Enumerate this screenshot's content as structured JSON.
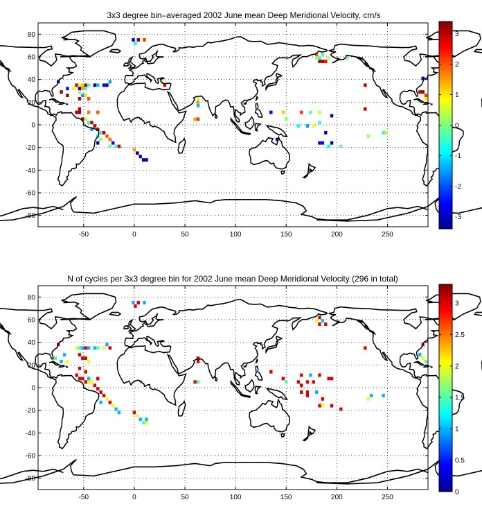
{
  "chart_data": [
    {
      "type": "heatmap",
      "title": "3x3 degree bin–averaged 2002 June mean Deep Meridional Velocity, cm/s",
      "xlim": [
        -95,
        290
      ],
      "ylim": [
        -90,
        90
      ],
      "xticks": [
        -50,
        0,
        50,
        100,
        150,
        200,
        250
      ],
      "yticks": [
        -80,
        -60,
        -40,
        -20,
        0,
        20,
        40,
        60,
        80
      ],
      "grid": true,
      "colorbar": {
        "clim": [
          -3.4,
          3.4
        ],
        "ticks": [
          -3,
          -2,
          -1,
          0,
          1,
          2,
          3
        ],
        "colormap": "jet"
      },
      "bin_size_deg": 3,
      "cells": [
        [
          4,
          75,
          3.2
        ],
        [
          10,
          75,
          2.2
        ],
        [
          1,
          72,
          -0.8
        ],
        [
          -1,
          75,
          -2.8
        ],
        [
          -75,
          38,
          -2.5
        ],
        [
          -72,
          29,
          3.2
        ],
        [
          -66,
          26,
          3.2
        ],
        [
          -66,
          32,
          -2.5
        ],
        [
          -57,
          35,
          2.8
        ],
        [
          -54,
          35,
          0.5
        ],
        [
          -51,
          35,
          1.2
        ],
        [
          -48,
          35,
          3.0
        ],
        [
          -45,
          35,
          -0.5
        ],
        [
          -39,
          35,
          -3.0
        ],
        [
          -36,
          35,
          -1.3
        ],
        [
          -30,
          35,
          -2.7
        ],
        [
          -27,
          35,
          -3.0
        ],
        [
          -24,
          38,
          -1.5
        ],
        [
          -60,
          32,
          0.8
        ],
        [
          -54,
          32,
          -3.0
        ],
        [
          -51,
          32,
          1.5
        ],
        [
          -48,
          32,
          -0.5
        ],
        [
          -54,
          29,
          0.2
        ],
        [
          -51,
          26,
          -1.5
        ],
        [
          -48,
          26,
          1.0
        ],
        [
          -54,
          23,
          3.0
        ],
        [
          -45,
          23,
          2.0
        ],
        [
          -54,
          14,
          3.0
        ],
        [
          -57,
          11,
          3.2
        ],
        [
          -54,
          11,
          3.2
        ],
        [
          -45,
          11,
          1.8
        ],
        [
          -36,
          11,
          2.0
        ],
        [
          -51,
          5,
          3.2
        ],
        [
          -48,
          5,
          0.5
        ],
        [
          -45,
          2,
          -0.5
        ],
        [
          -42,
          2,
          3.0
        ],
        [
          -39,
          -1,
          3.0
        ],
        [
          -36,
          -4,
          3.0
        ],
        [
          -42,
          -4,
          -1.5
        ],
        [
          -33,
          -7,
          -0.5
        ],
        [
          -30,
          -7,
          3.0
        ],
        [
          -36,
          -10,
          -0.8
        ],
        [
          -33,
          -13,
          0.3
        ],
        [
          -27,
          -10,
          2.0
        ],
        [
          -24,
          -13,
          1.8
        ],
        [
          -36,
          -16,
          -3.0
        ],
        [
          -21,
          -16,
          -2.5
        ],
        [
          -18,
          -19,
          -0.5
        ],
        [
          -15,
          -19,
          3.0
        ],
        [
          -24,
          -19,
          -0.2
        ],
        [
          0,
          -22,
          1.5
        ],
        [
          3,
          -25,
          -3.3
        ],
        [
          6,
          -28,
          -3.0
        ],
        [
          9,
          -31,
          -3.2
        ],
        [
          12,
          -31,
          -3.3
        ],
        [
          27,
          38,
          0.2
        ],
        [
          30,
          35,
          2.8
        ],
        [
          63,
          23,
          0.5
        ],
        [
          63,
          20,
          1.5
        ],
        [
          63,
          17,
          -1.3
        ],
        [
          60,
          5,
          1.5
        ],
        [
          63,
          5,
          2.2
        ],
        [
          135,
          11,
          -2.5
        ],
        [
          147,
          11,
          1.2
        ],
        [
          165,
          11,
          2.2
        ],
        [
          174,
          11,
          -0.3
        ],
        [
          183,
          11,
          0.5
        ],
        [
          195,
          8,
          -3.0
        ],
        [
          150,
          5,
          0.0
        ],
        [
          162,
          -1,
          -0.8
        ],
        [
          171,
          -1,
          -1.5
        ],
        [
          177,
          -1,
          0.8
        ],
        [
          183,
          2,
          -0.5
        ],
        [
          189,
          -7,
          -3.0
        ],
        [
          141,
          -13,
          -3.0
        ],
        [
          183,
          -16,
          -3.0
        ],
        [
          186,
          -16,
          -2.5
        ],
        [
          192,
          -19,
          -0.8
        ],
        [
          195,
          -16,
          -3.2
        ],
        [
          204,
          -19,
          -0.2
        ],
        [
          180,
          59,
          0.2
        ],
        [
          183,
          56,
          3.2
        ],
        [
          186,
          56,
          3.0
        ],
        [
          189,
          56,
          2.5
        ],
        [
          192,
          59,
          0.5
        ],
        [
          183,
          59,
          -0.5
        ],
        [
          186,
          62,
          -0.3
        ],
        [
          180,
          62,
          2.0
        ],
        [
          210,
          59,
          0.0
        ],
        [
          228,
          35,
          3.0
        ],
        [
          228,
          14,
          3.0
        ],
        [
          231,
          -10,
          0.2
        ],
        [
          246,
          -7,
          -0.5
        ],
        [
          249,
          -7,
          0.5
        ],
        [
          285,
          41,
          -3.0
        ],
        [
          285,
          29,
          3.2
        ],
        [
          282,
          29,
          3.0
        ],
        [
          288,
          26,
          2.2
        ],
        [
          288,
          23,
          1.0
        ]
      ]
    },
    {
      "type": "heatmap",
      "title": "N of cycles per 3x3 degree bin for 2002 June mean Deep Meridional Velocity (296 in total)",
      "xlim": [
        -95,
        290
      ],
      "ylim": [
        -90,
        90
      ],
      "xticks": [
        -50,
        0,
        50,
        100,
        150,
        200,
        250
      ],
      "yticks": [
        -80,
        -60,
        -40,
        -20,
        0,
        20,
        40,
        60,
        80
      ],
      "grid": true,
      "colorbar": {
        "clim": [
          0,
          3.3
        ],
        "ticks": [
          0,
          0.5,
          1,
          1.5,
          2,
          2.5,
          3
        ],
        "colormap": "jet"
      },
      "bin_size_deg": 3,
      "cells": [
        [
          4,
          75,
          3.0
        ],
        [
          10,
          75,
          1.0
        ],
        [
          1,
          72,
          3.0
        ],
        [
          -1,
          75,
          1.0
        ],
        [
          -75,
          38,
          3.0
        ],
        [
          -78,
          26,
          1.5
        ],
        [
          -72,
          23,
          1.0
        ],
        [
          -69,
          29,
          1.0
        ],
        [
          -66,
          23,
          2.0
        ],
        [
          -57,
          35,
          2.0
        ],
        [
          -54,
          35,
          1.5
        ],
        [
          -51,
          35,
          1.0
        ],
        [
          -48,
          35,
          3.0
        ],
        [
          -45,
          35,
          1.0
        ],
        [
          -39,
          35,
          1.0
        ],
        [
          -36,
          35,
          1.5
        ],
        [
          -30,
          35,
          2.0
        ],
        [
          -27,
          38,
          1.0
        ],
        [
          -24,
          35,
          3.0
        ],
        [
          -54,
          29,
          3.0
        ],
        [
          -51,
          26,
          3.0
        ],
        [
          -48,
          26,
          3.0
        ],
        [
          -45,
          23,
          2.0
        ],
        [
          -54,
          17,
          3.0
        ],
        [
          -48,
          14,
          3.0
        ],
        [
          -57,
          11,
          3.0
        ],
        [
          -54,
          8,
          3.0
        ],
        [
          -51,
          8,
          3.0
        ],
        [
          -45,
          8,
          1.0
        ],
        [
          -36,
          8,
          3.0
        ],
        [
          -48,
          5,
          3.0
        ],
        [
          -45,
          5,
          2.0
        ],
        [
          -42,
          5,
          2.0
        ],
        [
          -39,
          2,
          3.0
        ],
        [
          -36,
          -1,
          3.0
        ],
        [
          -33,
          -4,
          3.0
        ],
        [
          -30,
          -7,
          3.0
        ],
        [
          -27,
          -10,
          2.0
        ],
        [
          -24,
          -13,
          3.0
        ],
        [
          -21,
          -16,
          2.0
        ],
        [
          -18,
          -19,
          1.0
        ],
        [
          -15,
          -22,
          1.0
        ],
        [
          -33,
          -13,
          1.0
        ],
        [
          0,
          -22,
          3.0
        ],
        [
          3,
          -25,
          2.0
        ],
        [
          6,
          -28,
          1.0
        ],
        [
          9,
          -31,
          1.5
        ],
        [
          12,
          -31,
          2.0
        ],
        [
          12,
          -28,
          1.0
        ],
        [
          63,
          26,
          3.0
        ],
        [
          63,
          23,
          3.0
        ],
        [
          60,
          5,
          3.0
        ],
        [
          63,
          5,
          1.5
        ],
        [
          135,
          14,
          3.0
        ],
        [
          147,
          8,
          3.0
        ],
        [
          165,
          11,
          3.0
        ],
        [
          174,
          11,
          1.0
        ],
        [
          183,
          11,
          3.0
        ],
        [
          192,
          8,
          3.0
        ],
        [
          195,
          8,
          3.0
        ],
        [
          150,
          5,
          1.5
        ],
        [
          162,
          5,
          3.0
        ],
        [
          165,
          2,
          3.0
        ],
        [
          171,
          5,
          3.0
        ],
        [
          177,
          5,
          3.0
        ],
        [
          165,
          -4,
          3.0
        ],
        [
          171,
          -4,
          3.0
        ],
        [
          180,
          -4,
          1.0
        ],
        [
          186,
          -10,
          3.0
        ],
        [
          183,
          -16,
          3.0
        ],
        [
          186,
          -16,
          2.0
        ],
        [
          195,
          -16,
          3.0
        ],
        [
          204,
          -19,
          3.0
        ],
        [
          171,
          -7,
          3.0
        ],
        [
          180,
          59,
          2.0
        ],
        [
          183,
          56,
          3.0
        ],
        [
          186,
          59,
          1.0
        ],
        [
          189,
          56,
          3.0
        ],
        [
          183,
          62,
          3.0
        ],
        [
          228,
          35,
          3.0
        ],
        [
          231,
          -10,
          2.0
        ],
        [
          234,
          -7,
          1.0
        ],
        [
          246,
          -7,
          1.0
        ],
        [
          285,
          38,
          3.0
        ],
        [
          282,
          29,
          1.0
        ],
        [
          285,
          26,
          2.0
        ],
        [
          288,
          23,
          1.5
        ]
      ]
    }
  ]
}
